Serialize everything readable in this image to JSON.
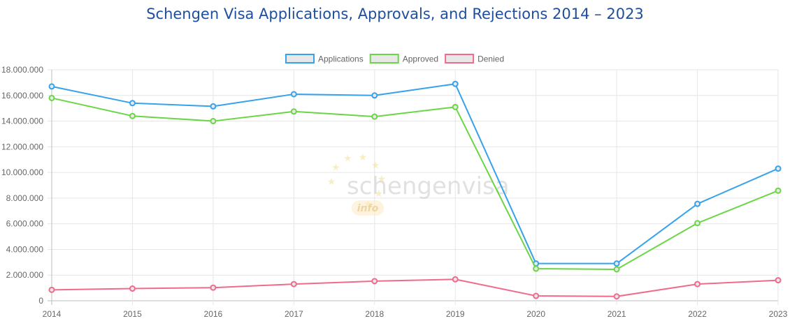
{
  "chart_data": {
    "type": "line",
    "title": "Schengen Visa Applications, Approvals, and Rejections 2014 – 2023",
    "x": [
      "2014",
      "2015",
      "2016",
      "2017",
      "2018",
      "2019",
      "2020",
      "2021",
      "2022",
      "2023"
    ],
    "ylim": [
      0,
      18000000
    ],
    "yticks": [
      "0",
      "2.000.000",
      "4.000.000",
      "6.000.000",
      "8.000.000",
      "10.000.000",
      "12.000.000",
      "14.000.000",
      "16.000.000",
      "18.000.000"
    ],
    "grid": true,
    "legend_position": "top-center",
    "series": [
      {
        "name": "Applications",
        "color": "#36a2eb",
        "values": [
          16700000,
          15400000,
          15150000,
          16100000,
          16000000,
          16900000,
          2900000,
          2900000,
          7550000,
          10300000
        ]
      },
      {
        "name": "Approved",
        "color": "#6ad645",
        "values": [
          15800000,
          14400000,
          14000000,
          14750000,
          14350000,
          15100000,
          2500000,
          2450000,
          6050000,
          8580000
        ]
      },
      {
        "name": "Denied",
        "color": "#f06b8b",
        "values": [
          850000,
          950000,
          1020000,
          1300000,
          1530000,
          1670000,
          380000,
          340000,
          1300000,
          1600000
        ]
      }
    ],
    "watermark": {
      "text": "schengenvisa",
      "badge": "info"
    }
  }
}
